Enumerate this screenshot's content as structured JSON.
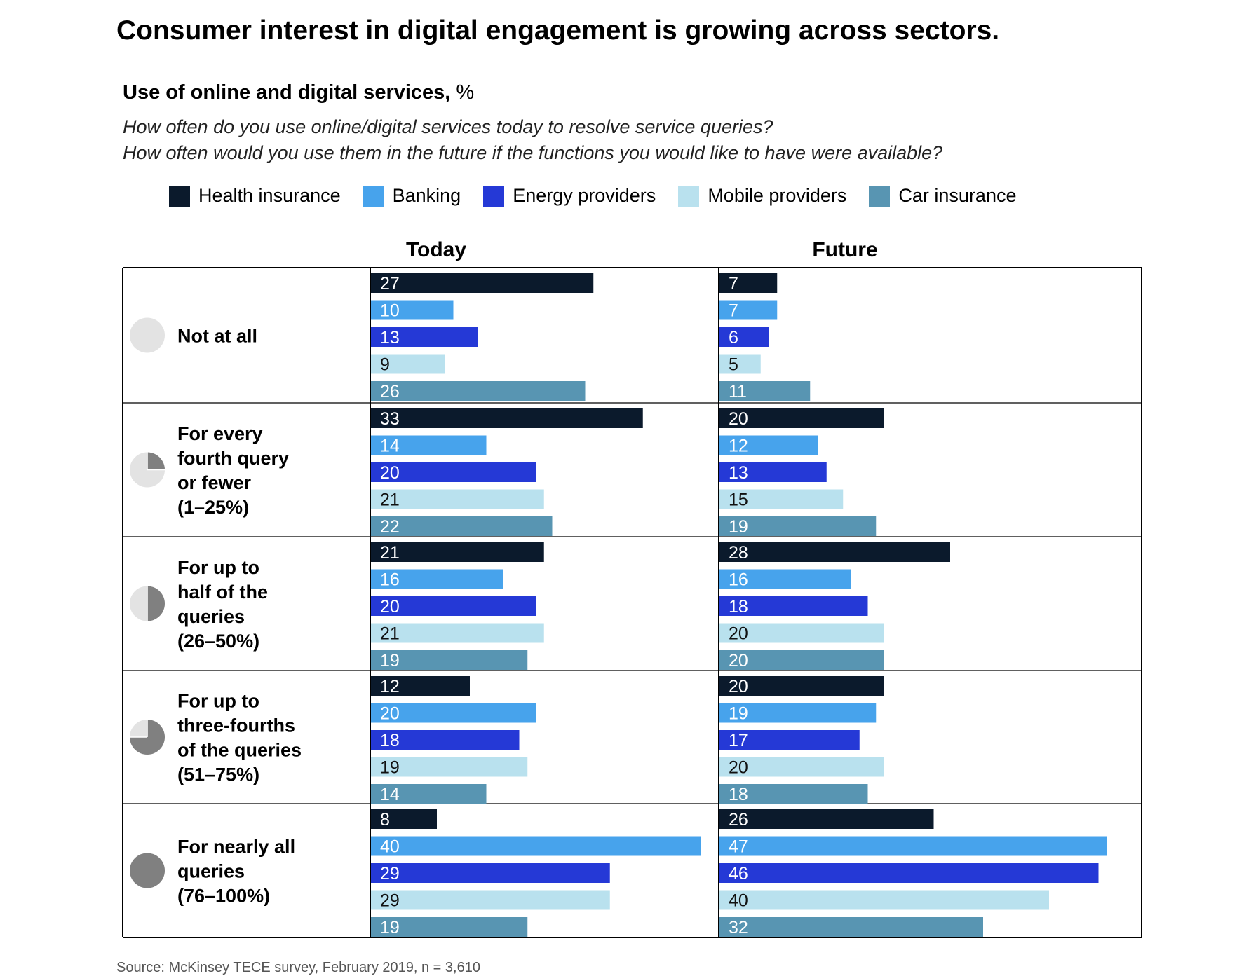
{
  "chart_data": {
    "type": "bar",
    "title": "Consumer interest in digital engagement is growing across sectors.",
    "subtitle": "Use of online and digital services,",
    "subtitle_unit": "%",
    "questions": [
      "How often do you use online/digital services today to resolve service queries?",
      "How often would you use them in the future if the functions you would like to have were available?"
    ],
    "panels": [
      "Today",
      "Future"
    ],
    "categories": [
      {
        "label_lines": [
          "Not at all"
        ],
        "fraction": 0
      },
      {
        "label_lines": [
          "For every",
          "fourth query",
          "or fewer",
          "(1–25%)"
        ],
        "fraction": 0.25
      },
      {
        "label_lines": [
          "For up to",
          "half of the",
          "queries",
          "(26–50%)"
        ],
        "fraction": 0.5
      },
      {
        "label_lines": [
          "For up to",
          "three-fourths",
          "of the queries",
          "(51–75%)"
        ],
        "fraction": 0.75
      },
      {
        "label_lines": [
          "For nearly all",
          "queries",
          "(76–100%)"
        ],
        "fraction": 1
      }
    ],
    "series": [
      {
        "name": "Health insurance",
        "color": "#0b1a2c",
        "today": [
          27,
          33,
          21,
          12,
          8
        ],
        "future": [
          7,
          20,
          28,
          20,
          26
        ]
      },
      {
        "name": "Banking",
        "color": "#47a3ec",
        "today": [
          10,
          14,
          16,
          20,
          40
        ],
        "future": [
          7,
          12,
          16,
          19,
          47
        ]
      },
      {
        "name": "Energy providers",
        "color": "#2539d6",
        "today": [
          13,
          20,
          20,
          18,
          29
        ],
        "future": [
          6,
          13,
          18,
          17,
          46
        ]
      },
      {
        "name": "Mobile providers",
        "color": "#b9e1ee",
        "today": [
          9,
          21,
          21,
          19,
          29
        ],
        "future": [
          5,
          15,
          20,
          20,
          40
        ]
      },
      {
        "name": "Car insurance",
        "color": "#5895b2",
        "today": [
          26,
          22,
          19,
          14,
          19
        ],
        "future": [
          11,
          19,
          20,
          18,
          32
        ]
      }
    ],
    "xlim": [
      0,
      40
    ],
    "source": "Source: McKinsey TECE survey, February 2019, n = 3,610"
  }
}
